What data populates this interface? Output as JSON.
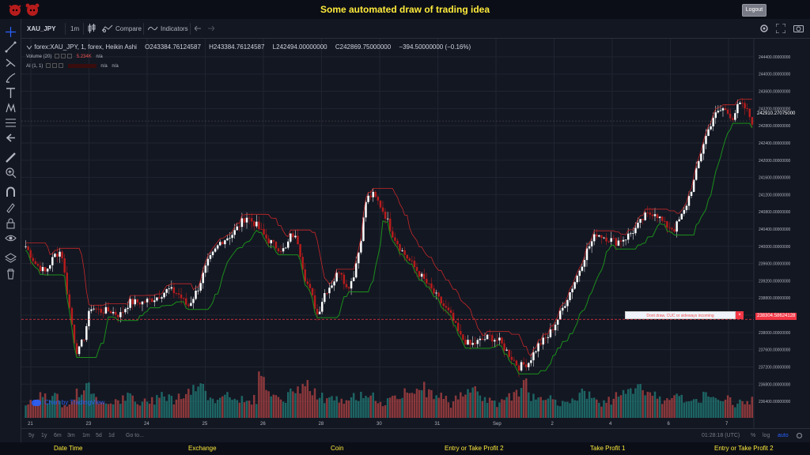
{
  "app": {
    "title": "Some automated draw of trading idea",
    "logout_label": "Logout"
  },
  "toolbar": {
    "symbol": "XAU_JPY",
    "interval": "1m",
    "compare_label": "Compare",
    "indicators_label": "Indicators"
  },
  "legend": {
    "main": "forex:XAU_JPY, 1, forex, Heikin Ashi",
    "open": "O243384.76124587",
    "high": "H243384.76124587",
    "low": "L242494.00000000",
    "close": "C242869.75000000",
    "change": "−394.50000000 (−0.16%)",
    "volume_label": "Volume (20)",
    "volume_value": "5.234K",
    "volume_na": "n/a",
    "ai_label": "AI (1, 1)",
    "ai_value": "",
    "ai_na1": "n/a",
    "ai_na2": "n/a"
  },
  "price_labels": {
    "current": "242910.27075000",
    "annotation": "238304.58624128",
    "annotation_text": "Dont draw, CUC or sideways incoming",
    "annotation_close": "×"
  },
  "watermark": "Chart by TradingView",
  "bottom": {
    "ranges": [
      "5y",
      "1y",
      "6m",
      "3m",
      "1m",
      "5d",
      "1d"
    ],
    "goto": "Go to...",
    "clock": "01:28:18 (UTC)",
    "percent": "%",
    "log": "log",
    "auto": "auto"
  },
  "footer": [
    "Date Time",
    "Exchange",
    "Coin",
    "Entry or Take Profit 2",
    "Take Profit 1",
    "Entry or Take Profit 2"
  ],
  "colors": {
    "up": "#ffffff",
    "down": "#b71c1c",
    "vol_up": "#26a69a",
    "vol_down": "#ef5350",
    "ma_green": "#1b8f1b",
    "ma_red": "#c62828",
    "accent": "#ffeb3b"
  },
  "chart_data": {
    "type": "candlestick",
    "y_ticks": [
      "244400.00000000",
      "244000.00000000",
      "243600.00000000",
      "243200.00000000",
      "242800.00000000",
      "242400.00000000",
      "242000.00000000",
      "241600.00000000",
      "241200.00000000",
      "240800.00000000",
      "240400.00000000",
      "240000.00000000",
      "239600.00000000",
      "239200.00000000",
      "238800.00000000",
      "238400.00000000",
      "238000.00000000",
      "237600.00000000",
      "237200.00000000",
      "236800.00000000",
      "236400.00000000"
    ],
    "ylim": [
      236200,
      244600
    ],
    "x_ticks": [
      "21",
      "23",
      "24",
      "25",
      "26",
      "28",
      "30",
      "31",
      "Sep",
      "2",
      "4",
      "6",
      "7"
    ],
    "price_path": [
      [
        0,
        240000
      ],
      [
        3,
        239600
      ],
      [
        6,
        239400
      ],
      [
        9,
        239800
      ],
      [
        11,
        239900
      ],
      [
        13,
        238800
      ],
      [
        15,
        237800
      ],
      [
        16,
        237500
      ],
      [
        18,
        237900
      ],
      [
        20,
        238600
      ],
      [
        23,
        238500
      ],
      [
        26,
        238500
      ],
      [
        29,
        238400
      ],
      [
        32,
        238700
      ],
      [
        36,
        238700
      ],
      [
        40,
        238800
      ],
      [
        44,
        239000
      ],
      [
        47,
        238900
      ],
      [
        50,
        238600
      ],
      [
        53,
        239000
      ],
      [
        56,
        239600
      ],
      [
        60,
        240100
      ],
      [
        64,
        240300
      ],
      [
        68,
        240700
      ],
      [
        71,
        240500
      ],
      [
        74,
        240200
      ],
      [
        77,
        240000
      ],
      [
        80,
        239900
      ],
      [
        82,
        240300
      ],
      [
        84,
        240100
      ],
      [
        86,
        239300
      ],
      [
        88,
        238900
      ],
      [
        90,
        238400
      ],
      [
        92,
        238900
      ],
      [
        95,
        239200
      ],
      [
        97,
        239500
      ],
      [
        99,
        239000
      ],
      [
        101,
        239300
      ],
      [
        103,
        240000
      ],
      [
        105,
        241100
      ],
      [
        107,
        241200
      ],
      [
        109,
        241000
      ],
      [
        111,
        240700
      ],
      [
        113,
        240300
      ],
      [
        116,
        239900
      ],
      [
        119,
        239600
      ],
      [
        122,
        239300
      ],
      [
        125,
        239000
      ],
      [
        128,
        238700
      ],
      [
        131,
        238400
      ],
      [
        134,
        237900
      ],
      [
        137,
        237700
      ],
      [
        140,
        237800
      ],
      [
        143,
        237900
      ],
      [
        146,
        237800
      ],
      [
        149,
        237500
      ],
      [
        152,
        237200
      ],
      [
        155,
        237300
      ],
      [
        158,
        237700
      ],
      [
        161,
        237900
      ],
      [
        164,
        238300
      ],
      [
        167,
        238800
      ],
      [
        170,
        239300
      ],
      [
        173,
        239900
      ],
      [
        176,
        240300
      ],
      [
        179,
        240200
      ],
      [
        182,
        240100
      ],
      [
        185,
        240200
      ],
      [
        188,
        240400
      ],
      [
        191,
        240700
      ],
      [
        194,
        240800
      ],
      [
        197,
        240500
      ],
      [
        200,
        240400
      ],
      [
        203,
        240800
      ],
      [
        206,
        241500
      ],
      [
        209,
        242400
      ],
      [
        212,
        243000
      ],
      [
        215,
        243200
      ],
      [
        218,
        243000
      ],
      [
        220,
        243300
      ],
      [
        222,
        243200
      ],
      [
        224,
        242900
      ]
    ],
    "volume_profile": [
      3,
      4,
      6,
      4,
      5,
      3,
      4,
      6,
      8,
      5,
      4,
      3,
      4,
      4,
      5,
      3,
      3,
      4,
      6,
      5,
      4,
      5,
      6,
      7,
      8,
      5,
      4,
      6,
      5,
      4,
      3,
      4,
      12,
      6,
      5,
      4,
      6,
      7,
      9,
      6,
      5,
      4,
      4,
      3,
      4,
      5,
      5,
      6,
      4,
      3,
      4,
      5,
      6,
      7,
      8,
      6,
      5,
      4,
      3,
      5,
      6,
      7,
      5,
      4,
      3,
      4,
      5,
      6,
      9,
      5,
      4,
      5,
      4,
      3,
      4,
      5,
      6,
      5,
      4,
      3,
      4,
      5,
      6,
      7,
      8,
      6,
      5,
      4,
      5,
      6,
      4,
      3,
      4,
      5,
      6,
      5,
      4,
      3,
      3,
      4
    ]
  }
}
